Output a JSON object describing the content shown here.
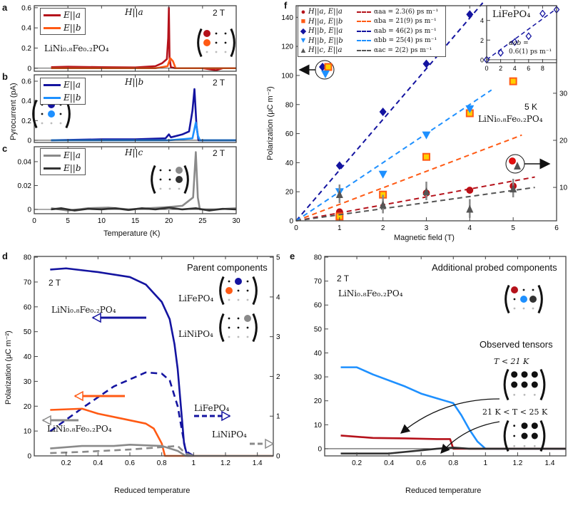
{
  "colors": {
    "dark_red": "#b5121b",
    "orange": "#ff5a14",
    "navy": "#1414a0",
    "light_blue": "#1e90ff",
    "gray": "#8a8a8a",
    "dark_gray": "#333333"
  },
  "panel_labels": {
    "a": "a",
    "b": "b",
    "c": "c",
    "d": "d",
    "e": "e",
    "f": "f"
  },
  "texts": {
    "a_field": "H||a",
    "b_field": "H||b",
    "c_field": "H||c",
    "field_2T": "2 T",
    "a_compound": "LiNi₀.₈Fe₀.₂PO₄",
    "leg_Ea": "E||a",
    "leg_Eb": "E||b",
    "abc_ylabel": "Pyrocurrent (pA)",
    "abc_xlabel": "Temperature (K)",
    "f_ylabel": "Polarization (μC m⁻²)",
    "f_xlabel": "Magnetic field (T)",
    "f_5K": "5 K",
    "f_compound": "LiNi₀.₈Fe₀.₂PO₄",
    "inset_title": "LiFePO₄",
    "inset_alpha1": "αab =",
    "inset_alpha2": "0.6(1) ps m⁻¹",
    "d_2T": "2 T",
    "d_title": "Parent components",
    "d_LiFePO4": "LiFePO₄",
    "d_LiNiPO4": "LiNiPO₄",
    "d_arrow_mixed": "LiNi₀.₈Fe₀.₂PO₄",
    "d_arrow_LiFePO4": "LiFePO₄",
    "d_arrow_mixed2": "LiNi₀.₈Fe₀.₂PO₄",
    "d_arrow_LiNiPO4": "LiNiPO₄",
    "de_ylabel": "Polarization (μC m⁻²)",
    "de_xlabel": "Reduced temperature",
    "e_2T": "2 T",
    "e_title": "Additional probed components",
    "e_compound": "LiNi₀.₈Fe₀.₂PO₄",
    "e_observed": "Observed tensors",
    "e_low": "T < 21 K",
    "e_mid": "21 K < T < 25 K"
  },
  "f_legend": [
    {
      "marker": "circle",
      "label": "H||a, E||a",
      "fit": "αaa = 2.3(6) ps m⁻¹",
      "color": "#b5121b"
    },
    {
      "marker": "square",
      "label": "H||a, E||b",
      "fit": "αba = 21(9) ps m⁻¹",
      "color": "#ff5a14"
    },
    {
      "marker": "diamond",
      "label": "H||b, E||a",
      "fit": "αab = 46(2) ps m⁻¹",
      "color": "#1414a0"
    },
    {
      "marker": "triangle-down",
      "label": "H||b, E||b",
      "fit": "αbb = 25(4) ps m⁻¹",
      "color": "#1e90ff"
    },
    {
      "marker": "triangle-up",
      "label": "H||c, E||a",
      "fit": "αac = 2(2) ps m⁻¹",
      "color": "#555555"
    }
  ],
  "chart_data": [
    {
      "id": "a",
      "type": "line",
      "xlim": [
        0,
        30
      ],
      "ylim": [
        -0.03,
        0.62
      ],
      "yticks": [
        0,
        0.2,
        0.4,
        0.6
      ],
      "xticks": [
        0,
        5,
        10,
        15,
        20,
        25,
        30
      ],
      "series": [
        {
          "name": "E||a",
          "color": "#b5121b",
          "x": [
            2.5,
            5,
            10,
            15,
            18,
            19,
            19.7,
            19.9,
            20.0,
            20.1,
            20.3,
            21,
            25,
            27,
            28,
            30
          ],
          "y": [
            0.01,
            0.015,
            0.01,
            0.008,
            0.02,
            0.05,
            0.09,
            0.3,
            0.6,
            0.1,
            0.01,
            0,
            0,
            -0.02,
            0,
            0
          ]
        },
        {
          "name": "E||b",
          "color": "#ff5a14",
          "x": [
            2.5,
            10,
            18,
            19.8,
            20.2,
            20.6,
            21,
            25,
            30
          ],
          "y": [
            0,
            0,
            0,
            0.02,
            0.1,
            0.07,
            0,
            0,
            0
          ]
        }
      ]
    },
    {
      "id": "b",
      "type": "line",
      "xlim": [
        0,
        30
      ],
      "ylim": [
        -0.022,
        0.665
      ],
      "yticks": [
        0,
        0.2,
        0.4,
        0.6
      ],
      "xticks": [
        0,
        5,
        10,
        15,
        20,
        25,
        30
      ],
      "series": [
        {
          "name": "E||a",
          "color": "#1414a0",
          "x": [
            2.5,
            10,
            15,
            19.5,
            20,
            20.3,
            22,
            23,
            23.5,
            23.8,
            24.1,
            24.4,
            25,
            30
          ],
          "y": [
            0,
            0.01,
            0.01,
            0.02,
            0.06,
            0.03,
            0.06,
            0.09,
            0.3,
            0.52,
            0.15,
            0,
            0,
            0
          ]
        },
        {
          "name": "E||b",
          "color": "#1e90ff",
          "x": [
            2.5,
            10,
            20,
            23.5,
            24,
            24.3,
            24.6,
            30
          ],
          "y": [
            0,
            0,
            0,
            0.02,
            0.18,
            0.05,
            0,
            0
          ]
        }
      ]
    },
    {
      "id": "c",
      "type": "line",
      "xlim": [
        0,
        30
      ],
      "ylim": [
        -0.0036,
        0.0525
      ],
      "yticks": [
        0,
        0.02,
        0.04
      ],
      "xticks": [
        0,
        5,
        10,
        15,
        20,
        25,
        30
      ],
      "series": [
        {
          "name": "E||a",
          "color": "#8a8a8a",
          "x": [
            2.5,
            5,
            8,
            11,
            14,
            17,
            20,
            22,
            23.6,
            24,
            24.3,
            24.6,
            27,
            30
          ],
          "y": [
            0.001,
            -0.001,
            0.001,
            0.0015,
            0,
            0.001,
            0.002,
            0.003,
            0.01,
            0.048,
            0.01,
            0,
            0,
            0.001
          ]
        },
        {
          "name": "E||b",
          "color": "#333333",
          "x": [
            2.5,
            4,
            6,
            8,
            10,
            12,
            14,
            16,
            18,
            20,
            22,
            24,
            26,
            28,
            30
          ],
          "y": [
            0,
            0.001,
            -0.001,
            0.0005,
            0,
            0.001,
            -0.0005,
            0.001,
            0,
            0.0015,
            0,
            0.001,
            -0.001,
            0.0005,
            0
          ]
        }
      ]
    },
    {
      "id": "d",
      "type": "line",
      "xlim": [
        0,
        1.5
      ],
      "ylim": [
        0,
        80.3
      ],
      "ylim_right": [
        0,
        5.02
      ],
      "yticks": [
        0,
        10,
        20,
        30,
        40,
        50,
        60,
        70,
        80
      ],
      "yticks_right": [
        0,
        1,
        2,
        3,
        4,
        5
      ],
      "xticks": [
        0.2,
        0.4,
        0.6,
        0.8,
        1,
        1.2,
        1.4
      ],
      "series": [
        {
          "name": "LiNi0.8Fe0.2PO4 (solid blue)",
          "axis": "left",
          "color": "#1414a0",
          "dash": false,
          "x": [
            0.1,
            0.2,
            0.4,
            0.6,
            0.7,
            0.8,
            0.85,
            0.88,
            0.9,
            0.92,
            0.94,
            0.96,
            1.0
          ],
          "y": [
            75,
            75.5,
            74,
            72,
            69,
            62,
            55,
            45,
            35,
            20,
            5,
            0,
            0
          ]
        },
        {
          "name": "LiFePO4 (dashed blue)",
          "axis": "right",
          "color": "#1414a0",
          "dash": true,
          "x": [
            0.1,
            0.3,
            0.5,
            0.7,
            0.8,
            0.85,
            0.9,
            0.95,
            1.0
          ],
          "y": [
            0.62,
            1.2,
            1.75,
            2.1,
            2.07,
            1.9,
            1.25,
            0.12,
            0
          ]
        },
        {
          "name": "LiNi0.8Fe0.2PO4 (orange)",
          "axis": "left",
          "color": "#ff5a14",
          "dash": false,
          "x": [
            0.1,
            0.3,
            0.4,
            0.55,
            0.7,
            0.75,
            0.8,
            0.82,
            1.0,
            1.5
          ],
          "y": [
            18.5,
            19,
            17,
            15,
            13,
            11,
            5,
            0,
            0,
            0
          ]
        },
        {
          "name": "LiNi0.8Fe0.2PO4 (gray)",
          "axis": "left",
          "color": "#8a8a8a",
          "dash": false,
          "x": [
            0.1,
            0.3,
            0.5,
            0.6,
            0.8,
            0.9,
            0.95,
            1.5
          ],
          "y": [
            3,
            4,
            4,
            4.5,
            4,
            2,
            0,
            0
          ]
        },
        {
          "name": "LiNiPO4 (dashed gray)",
          "axis": "right",
          "color": "#8a8a8a",
          "dash": true,
          "x": [
            0.1,
            0.3,
            0.6,
            0.8,
            0.9,
            0.95,
            1.0
          ],
          "y": [
            0.07,
            0.1,
            0.16,
            0.22,
            0.25,
            0.06,
            0
          ]
        }
      ]
    },
    {
      "id": "e",
      "type": "line",
      "xlim": [
        0,
        1.5
      ],
      "ylim": [
        -3,
        80.3
      ],
      "yticks": [
        0,
        10,
        20,
        30,
        40,
        50,
        60,
        70,
        80
      ],
      "xticks": [
        0.2,
        0.4,
        0.6,
        0.8,
        1,
        1.2,
        1.4
      ],
      "series": [
        {
          "name": "light blue",
          "color": "#1e90ff",
          "x": [
            0.1,
            0.2,
            0.3,
            0.5,
            0.6,
            0.7,
            0.75,
            0.8,
            0.85,
            0.9,
            0.95,
            1.0,
            1.5
          ],
          "y": [
            34,
            34,
            31,
            26,
            23,
            21,
            20,
            19,
            14,
            8,
            3,
            0,
            0
          ]
        },
        {
          "name": "dark red",
          "color": "#b5121b",
          "x": [
            0.1,
            0.3,
            0.5,
            0.7,
            0.78,
            0.8,
            1.5
          ],
          "y": [
            5.5,
            4.5,
            4.3,
            4,
            4,
            0,
            0
          ]
        },
        {
          "name": "dark gray",
          "color": "#333333",
          "x": [
            0.1,
            0.4,
            0.55,
            0.7,
            0.8,
            0.9,
            1.5
          ],
          "y": [
            -2,
            -2,
            -1,
            0,
            0.5,
            0,
            0
          ]
        }
      ]
    },
    {
      "id": "f",
      "type": "scatter",
      "xlim": [
        0,
        6
      ],
      "ylim": [
        0,
        148
      ],
      "ylim_right": [
        2.9,
        48.6
      ],
      "xticks": [
        0,
        1,
        2,
        3,
        4,
        5,
        6
      ],
      "yticks": [
        0,
        20,
        40,
        60,
        80,
        100,
        120,
        140
      ],
      "yticks_right": [
        10,
        20,
        30
      ],
      "series": [
        {
          "name": "H||a, E||a",
          "axis": "right",
          "marker": "circle",
          "color": "#b5121b",
          "x": [
            1,
            2,
            3,
            4,
            5
          ],
          "y": [
            4.8,
            8.4,
            8.8,
            9.4,
            10.3
          ],
          "fit": {
            "x": [
              0,
              5.5
            ],
            "y": [
              2.9,
              12.2
            ]
          }
        },
        {
          "name": "H||a, E||b",
          "axis": "left",
          "marker": "square",
          "color": "#ff5a14",
          "x": [
            1,
            2,
            3,
            4,
            5
          ],
          "y": [
            3,
            18,
            44,
            74,
            96
          ],
          "fit": {
            "x": [
              0,
              5.2
            ],
            "y": [
              0,
              59
            ]
          }
        },
        {
          "name": "H||b, E||a",
          "axis": "left",
          "marker": "diamond",
          "color": "#1414a0",
          "x": [
            1,
            2,
            3,
            4
          ],
          "y": [
            38,
            75,
            108,
            142
          ],
          "fit": {
            "x": [
              0,
              4.3
            ],
            "y": [
              0,
              150
            ]
          }
        },
        {
          "name": "H||b, E||b",
          "axis": "left",
          "marker": "triangle-down",
          "color": "#1e90ff",
          "x": [
            1,
            2,
            3,
            4
          ],
          "y": [
            20,
            32,
            59,
            77
          ],
          "fit": {
            "x": [
              0,
              4.5
            ],
            "y": [
              0,
              90
            ]
          }
        },
        {
          "name": "H||c, E||a",
          "axis": "right",
          "marker": "triangle-up",
          "color": "#555555",
          "x": [
            1,
            2,
            3,
            4,
            5
          ],
          "y": [
            8.5,
            6.3,
            9.1,
            5.4,
            9.7
          ],
          "fit": {
            "x": [
              0,
              5.5
            ],
            "y": [
              2.9,
              10
            ]
          }
        }
      ]
    },
    {
      "id": "f_inset",
      "type": "scatter",
      "title": "LiFePO4",
      "xlim": [
        0,
        10
      ],
      "ylim": [
        -0.3,
        5.5
      ],
      "xticks": [
        0,
        2,
        4,
        6,
        8
      ],
      "yticks": [
        0,
        2,
        4
      ],
      "series": [
        {
          "name": "LiFePO4",
          "marker": "open-diamond",
          "color": "#1414a0",
          "x": [
            0,
            2,
            4,
            6,
            8,
            10
          ],
          "y": [
            0,
            0.7,
            1.8,
            2.4,
            4.7,
            5.1
          ],
          "fit": {
            "x": [
              0,
              10
            ],
            "y": [
              0,
              5.2
            ]
          }
        }
      ]
    }
  ],
  "matrices": [
    {
      "id": "a",
      "dots": [
        [
          "#b5121b",
          "k",
          "k"
        ],
        [
          "#ff5a14",
          "k",
          "k"
        ]
      ]
    },
    {
      "id": "b",
      "dots": [
        [
          "k",
          "#1414a0",
          "k"
        ],
        [
          "k",
          "#1e90ff",
          "k"
        ]
      ]
    },
    {
      "id": "c",
      "dots": [
        [
          "k",
          "k",
          "#8a8a8a"
        ],
        [
          "k",
          "k",
          "#333333"
        ]
      ]
    },
    {
      "id": "d_LiFePO4",
      "dots": [
        [
          "k",
          "#1414a0",
          "k"
        ],
        [
          "#ff5a14",
          "k",
          "k"
        ]
      ]
    },
    {
      "id": "d_LiNiPO4",
      "dots": [
        [
          "k",
          "k",
          "#8a8a8a"
        ],
        [
          "k",
          "k",
          "k"
        ]
      ]
    },
    {
      "id": "e_probed",
      "dots": [
        [
          "#b5121b",
          "k",
          "k"
        ],
        [
          "k",
          "#1e90ff",
          "#333333"
        ]
      ]
    },
    {
      "id": "e_low",
      "dots": [
        [
          "B",
          "B",
          "B"
        ],
        [
          "B",
          "B",
          "B"
        ]
      ]
    },
    {
      "id": "e_mid",
      "dots": [
        [
          "k",
          "B",
          "B"
        ],
        [
          "k",
          "B",
          "B"
        ]
      ]
    }
  ]
}
